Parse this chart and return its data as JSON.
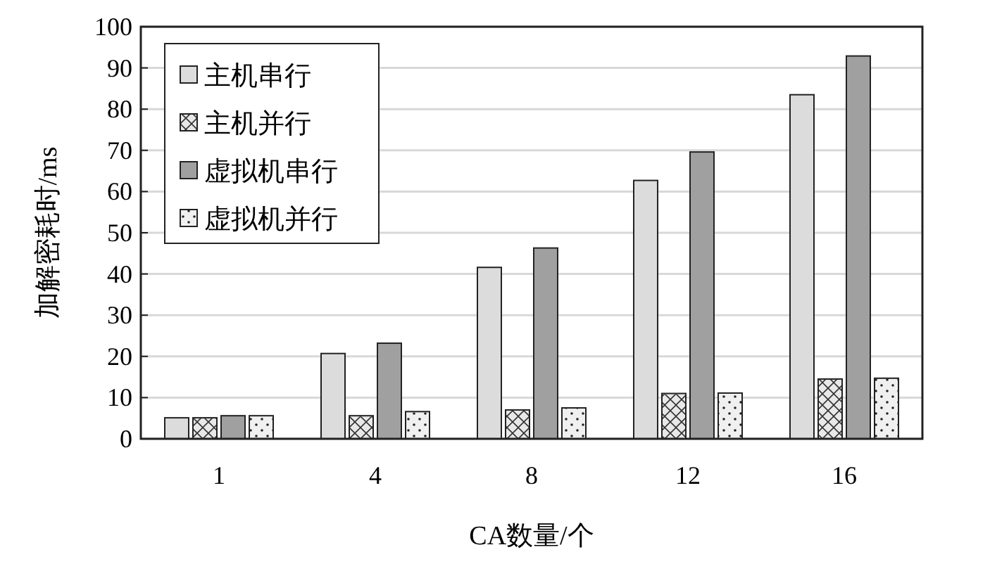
{
  "chart_data": {
    "type": "bar",
    "xlabel": "CA数量/个",
    "ylabel": "加解密耗时/ms",
    "categories": [
      "1",
      "4",
      "8",
      "12",
      "16"
    ],
    "series": [
      {
        "name": "主机串行",
        "color": "#dcdcdc",
        "values": [
          5.1,
          20.7,
          41.6,
          62.7,
          83.5
        ]
      },
      {
        "name": "主机并行",
        "color": "#e8e8e8",
        "values": [
          5.1,
          5.6,
          7.0,
          11.0,
          14.5
        ]
      },
      {
        "name": "虚拟机串行",
        "color": "#a0a0a0",
        "values": [
          5.6,
          23.2,
          46.3,
          69.6,
          92.9
        ]
      },
      {
        "name": "虚拟机并行",
        "color": "#f0f0f0",
        "values": [
          5.6,
          6.6,
          7.5,
          11.1,
          14.7
        ]
      }
    ],
    "ylim": [
      0,
      100
    ],
    "yticks": [
      0,
      10,
      20,
      30,
      40,
      50,
      60,
      70,
      80,
      90,
      100
    ],
    "grid": "y",
    "legend": "top left"
  }
}
